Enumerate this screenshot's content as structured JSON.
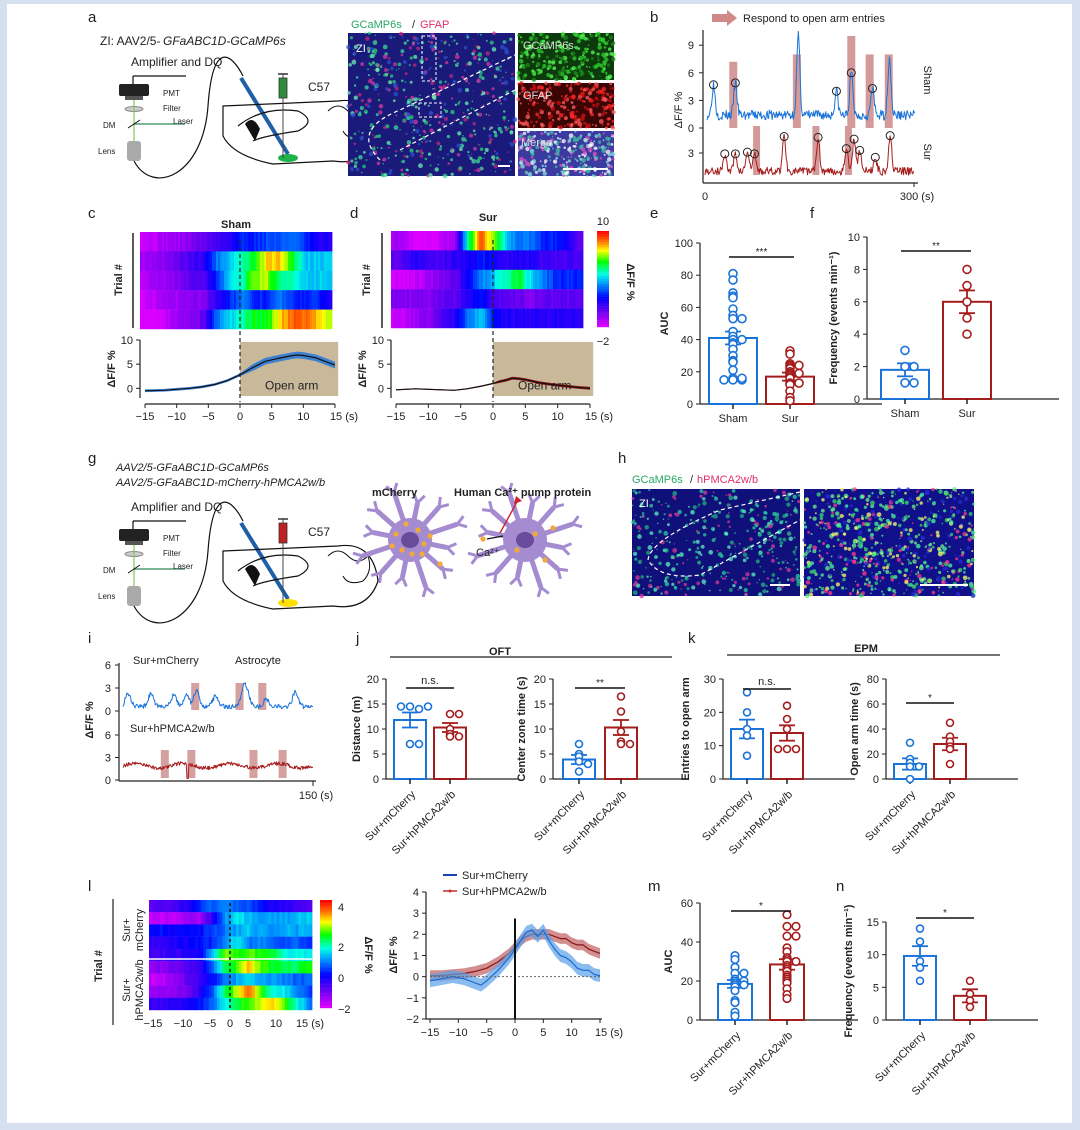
{
  "figure": {
    "colors": {
      "sham": "#1a73d9",
      "sur": "#a51c1c",
      "open_arm": "#c9b99a",
      "light_red": "#d98c8c",
      "mcherry_trace": "#1f3fb8",
      "hpmca_trace": "#c03030"
    },
    "panel_letters": [
      "a",
      "b",
      "c",
      "d",
      "e",
      "f",
      "g",
      "h",
      "i",
      "j",
      "k",
      "l",
      "m",
      "n"
    ],
    "panel_a": {
      "title": "ZI: AAV2/5-GFaABC1D-GCaMP6s",
      "amplifier": "Amplifier and DQ",
      "pmt": "PMT",
      "filter": "Filter",
      "dm": "DM",
      "laser": "Laser",
      "lens": "Lens",
      "strain": "C57",
      "zi": "ZI",
      "stain_title_green": "GCaMP6s",
      "stain_sep": " / ",
      "stain_title_red": "GFAP",
      "insets": [
        "GCaMP6s",
        "GFAP",
        "Merge"
      ]
    },
    "panel_g": {
      "line1": "AAV2/5-GFaABC1D-GCaMP6s",
      "line2": "AAV2/5-GFaABC1D-mCherry-hPMCA2w/b",
      "amplifier": "Amplifier and DQ",
      "pmt": "PMT",
      "filter": "Filter",
      "dm": "DM",
      "laser": "Laser",
      "lens": "Lens",
      "strain": "C57",
      "mcherry": "mCherry",
      "pump": "Human Ca²⁺ pump protein",
      "ca": "Ca²⁺"
    },
    "panel_h": {
      "title_green": "GCaMP6s",
      "sep": " / ",
      "title_red": "hPMCA2w/b",
      "zi": "ZI"
    }
  },
  "chart_data": [
    {
      "id": "b",
      "type": "line",
      "title": "Respond to open arm entries",
      "ylabel": "ΔF/F %",
      "xlabel": "",
      "x_ticks": [
        "0",
        "300 (s)"
      ],
      "y_ticks_sham": [
        "0",
        "3",
        "6",
        "9"
      ],
      "y_ticks_sur": [
        "3"
      ],
      "xlim": [
        0,
        300
      ],
      "series": [
        {
          "name": "Sham",
          "peaks_x": [
            12,
            43,
            132,
            186,
            207,
            237,
            261
          ],
          "peaks_y": [
            4.7,
            4.9,
            10,
            4.0,
            6.0,
            4.3,
            7.6
          ],
          "circles_x": [
            12,
            43,
            186,
            207,
            237
          ],
          "circles_y": [
            4.7,
            4.9,
            4.0,
            6.0,
            4.3
          ],
          "open_arm_x": [
            40,
            130,
            207,
            233,
            260
          ]
        },
        {
          "name": "Sur",
          "circles_x": [
            28,
            43,
            60,
            70,
            112,
            160,
            200,
            211,
            219,
            241,
            262
          ],
          "circles_y": [
            2.9,
            2.9,
            3.1,
            2.9,
            4.9,
            4.8,
            3.5,
            4.6,
            3.3,
            2.5,
            5.0
          ],
          "open_arm_x": [
            73,
            157,
            203
          ]
        }
      ]
    },
    {
      "id": "c",
      "type": "heatmap",
      "title": "Sham",
      "ylabel": "Trial #",
      "rows": [
        [
          -1.5,
          -1.5,
          -1,
          -1,
          -0.5,
          0,
          0.5,
          1,
          2,
          2,
          2.5,
          2.5,
          3,
          2,
          1,
          1
        ],
        [
          -1,
          -1,
          -0.5,
          0,
          0.5,
          1,
          3,
          4,
          5,
          6,
          8,
          8,
          6,
          4,
          4,
          4
        ],
        [
          -1.5,
          -1,
          -1,
          -0.5,
          0,
          0.5,
          2,
          4,
          5,
          7,
          7,
          5,
          5,
          4,
          4,
          4
        ],
        [
          -2,
          -1.5,
          -1,
          -1,
          -0.5,
          -0.5,
          1,
          2,
          3,
          2,
          2,
          3,
          2,
          2,
          2,
          1
        ],
        [
          -2,
          -2,
          -1.5,
          -1,
          -0.5,
          0,
          3,
          4,
          5,
          6,
          6,
          8,
          9,
          9,
          8,
          7
        ]
      ]
    },
    {
      "id": "c-trace",
      "type": "line",
      "ylabel": "ΔF/F %",
      "xlabel": "(s)",
      "xlim": [
        -15,
        15
      ],
      "ylim": [
        -2,
        10
      ],
      "x_ticks": [
        "−15",
        "−10",
        "−5",
        "0",
        "5",
        "10",
        "15 (s)"
      ],
      "y_ticks": [
        "0",
        "5",
        "10"
      ],
      "x": [
        -15,
        -12,
        -10,
        -8,
        -6,
        -4,
        -2,
        0,
        2,
        4,
        6,
        8,
        9,
        10,
        12,
        14,
        15
      ],
      "y": [
        -0.5,
        -0.4,
        -0.2,
        0,
        0.3,
        0.8,
        1.6,
        2.8,
        4.3,
        5.6,
        6.2,
        6.7,
        6.9,
        6.8,
        6.3,
        5.3,
        4.8
      ],
      "sem": 0.7,
      "annotation": "Open arm"
    },
    {
      "id": "d",
      "type": "heatmap",
      "title": "Sur",
      "ylabel": "Trial #",
      "colorbar": {
        "min": "−2",
        "max": "10",
        "label": "ΔF/F %"
      },
      "rows": [
        [
          -1,
          -1.5,
          -2,
          -2,
          -1.5,
          -1,
          5,
          9,
          7,
          4,
          3,
          3,
          2,
          2,
          1,
          0
        ],
        [
          0,
          0.5,
          1,
          0.5,
          0.5,
          1,
          1,
          2,
          1.5,
          1,
          1,
          1,
          0.5,
          0.5,
          0.5,
          0.5
        ],
        [
          -2,
          -2,
          -1.5,
          -1,
          -0.5,
          0,
          1.5,
          3,
          4,
          5,
          6,
          4,
          3,
          2,
          2,
          2
        ],
        [
          -0.5,
          -0.5,
          -0.5,
          -0.5,
          0,
          0,
          1,
          2,
          0.5,
          0,
          0,
          -0.5,
          0,
          0,
          0,
          0
        ],
        [
          -1.5,
          -1.5,
          -1,
          -0.5,
          0.5,
          1,
          3,
          4,
          2,
          1,
          1,
          1,
          1,
          1,
          1,
          1
        ]
      ]
    },
    {
      "id": "d-trace",
      "type": "line",
      "ylabel": "ΔF/F %",
      "xlabel": "(s)",
      "xlim": [
        -15,
        15
      ],
      "ylim": [
        -2,
        10
      ],
      "x_ticks": [
        "−15",
        "−10",
        "−5",
        "0",
        "5",
        "10",
        "15 (s)"
      ],
      "y_ticks": [
        "0",
        "5",
        "10"
      ],
      "x": [
        -15,
        -12,
        -10,
        -8,
        -6,
        -4,
        -2,
        0,
        1,
        2,
        3,
        4,
        5,
        7,
        9,
        11,
        13,
        15
      ],
      "y": [
        -0.3,
        -0.1,
        -0.2,
        -0.3,
        -0.4,
        -0.1,
        0.4,
        1.0,
        1.4,
        1.7,
        2.1,
        2.0,
        1.8,
        1.2,
        0.8,
        0.5,
        0.2,
        0.0
      ],
      "sem": 0.3,
      "annotation": "Open arm"
    },
    {
      "id": "e",
      "type": "bar",
      "ylabel": "AUC",
      "ylim": [
        0,
        100
      ],
      "y_ticks": [
        "0",
        "20",
        "40",
        "60",
        "80",
        "100"
      ],
      "categories": [
        "Sham",
        "Sur"
      ],
      "values": [
        41,
        17
      ],
      "sem": [
        4,
        2.5
      ],
      "significance": "***",
      "points": [
        [
          81,
          77,
          69,
          67,
          66,
          59,
          55,
          53,
          53,
          45,
          42,
          40,
          40,
          38,
          37,
          34,
          30,
          27,
          26,
          21,
          16,
          15,
          15,
          15,
          16
        ],
        [
          33,
          31,
          25,
          24,
          24,
          23,
          22,
          20,
          19,
          19,
          18,
          17,
          16,
          13,
          13,
          12,
          8,
          4,
          2
        ]
      ]
    },
    {
      "id": "f",
      "type": "bar",
      "ylabel": "Frequency (events min⁻¹)",
      "ylim": [
        0,
        10
      ],
      "y_ticks": [
        "0",
        "2",
        "4",
        "6",
        "8",
        "10"
      ],
      "categories": [
        "Sham",
        "Sur"
      ],
      "values": [
        1.8,
        6.0
      ],
      "sem": [
        0.4,
        0.7
      ],
      "significance": "**",
      "points": [
        [
          3,
          2,
          2,
          1,
          1
        ],
        [
          8,
          7,
          6,
          5,
          4
        ]
      ]
    },
    {
      "id": "i",
      "type": "line",
      "ylabel": "ΔF/F %",
      "xlim": [
        0,
        150
      ],
      "x_ticks": [
        "150 (s)"
      ],
      "y_ticks_top": [
        "0",
        "3",
        "6"
      ],
      "y_ticks_bottom": [
        "0",
        "3",
        "6"
      ],
      "series": [
        {
          "name": "Sur+mCherry",
          "label2": "Astrocyte",
          "open_arm_x": [
            57,
            92,
            110
          ]
        },
        {
          "name": "Sur+hPMCA2w/b",
          "open_arm_x": [
            33,
            54,
            103,
            126
          ]
        }
      ]
    },
    {
      "id": "j-left",
      "type": "bar",
      "group_title": "OFT",
      "ylabel": "Distance (m)",
      "ylim": [
        0,
        20
      ],
      "y_ticks": [
        "0",
        "5",
        "10",
        "15",
        "20"
      ],
      "categories": [
        "Sur+mCherry",
        "Sur+hPMCA2w/b"
      ],
      "values": [
        11.8,
        10.3
      ],
      "sem": [
        1.5,
        0.9
      ],
      "significance": "n.s.",
      "points": [
        [
          14.5,
          14,
          14.5,
          14.5,
          7,
          7
        ],
        [
          13,
          13,
          10,
          9,
          8.5,
          8.5
        ]
      ]
    },
    {
      "id": "j-right",
      "type": "bar",
      "ylabel": "Center zone time (s)",
      "ylim": [
        0,
        20
      ],
      "y_ticks": [
        "0",
        "5",
        "10",
        "15",
        "20"
      ],
      "categories": [
        "Sur+mCherry",
        "Sur+hPMCA2w/b"
      ],
      "values": [
        3.9,
        10.3
      ],
      "sem": [
        0.9,
        1.5
      ],
      "significance": "**",
      "points": [
        [
          7,
          5,
          4.5,
          3.5,
          3,
          1.5
        ],
        [
          16.5,
          13.5,
          9.5,
          7.5,
          7,
          7
        ]
      ]
    },
    {
      "id": "k-left",
      "type": "bar",
      "group_title": "EPM",
      "ylabel": "Entries to open arm",
      "ylim": [
        0,
        30
      ],
      "y_ticks": [
        "0",
        "10",
        "20",
        "30"
      ],
      "categories": [
        "Sur+mCherry",
        "Sur+hPMCA2w/b"
      ],
      "values": [
        15,
        13.8
      ],
      "sem": [
        2.8,
        2.3
      ],
      "significance": "n.s.",
      "points": [
        [
          26,
          20,
          15,
          13,
          7
        ],
        [
          22,
          18,
          15,
          9,
          9,
          9
        ]
      ]
    },
    {
      "id": "k-right",
      "type": "bar",
      "ylabel": "Open arm time (s)",
      "ylim": [
        0,
        80
      ],
      "y_ticks": [
        "0",
        "20",
        "40",
        "60",
        "80"
      ],
      "categories": [
        "Sur+mCherry",
        "Sur+hPMCA2w/b"
      ],
      "values": [
        12,
        28
      ],
      "sem": [
        4.5,
        5
      ],
      "significance": "*",
      "points": [
        [
          29,
          16,
          13,
          10,
          10,
          0
        ],
        [
          45,
          34,
          30,
          26,
          24,
          12
        ]
      ]
    },
    {
      "id": "l-heatmap",
      "type": "heatmap",
      "ylabel": "Trial #",
      "group_labels": [
        "Sur+ mCherry",
        "Sur+ hPMCA2w/b"
      ],
      "x_ticks": [
        "−15",
        "−10",
        "−5",
        "0",
        "5",
        "10",
        "15 (s)"
      ],
      "colorbar": {
        "ticks": [
          "−2",
          "0",
          "2",
          "4"
        ],
        "label": "ΔF/F %"
      },
      "rows": [
        [
          -0.8,
          -0.8,
          -0.6,
          -0.5,
          0.2,
          0.6,
          0.8,
          0.6,
          0.4,
          0,
          -0.3,
          -0.5,
          -0.7,
          -0.8
        ],
        [
          -1.8,
          -1.7,
          -1.7,
          -1.5,
          -1.5,
          -0.5,
          0.8,
          1.4,
          1.2,
          1,
          0.9,
          1,
          1.2,
          1.3
        ],
        [
          0,
          0,
          -0.2,
          0,
          0,
          0.3,
          0.7,
          1,
          1.2,
          1,
          1,
          1.1,
          1,
          1.1
        ],
        [
          -0.5,
          -0.4,
          -0.3,
          -0.2,
          0,
          0.2,
          0.8,
          1.5,
          0.7,
          0.8,
          0.5,
          0.5,
          0.5,
          0.2
        ],
        [
          -0.6,
          -0.6,
          -0.5,
          -0.4,
          -0.2,
          1,
          2.8,
          2.5,
          2.7,
          2.4,
          2.3,
          1.5,
          1.6,
          1.5
        ],
        [
          -1.4,
          -1.2,
          -1,
          -0.8,
          -0.5,
          0.5,
          2,
          2.5,
          3.5,
          2.7,
          2.3,
          2,
          2.2,
          2.6
        ],
        [
          -1.8,
          -1.7,
          -1.4,
          -0.8,
          -0.5,
          0,
          0.7,
          1,
          1.3,
          1,
          0.9,
          0.8,
          0.5,
          0.8
        ],
        [
          -1.5,
          -1.4,
          -1.2,
          -1,
          -0.5,
          0.5,
          2,
          3,
          4,
          2.5,
          1.6,
          1.4,
          0.7,
          0.3
        ],
        [
          -0.5,
          -0.5,
          -0.4,
          -0.3,
          0,
          0.5,
          1.5,
          2.2,
          2.7,
          3,
          3.5,
          2.5,
          1.5,
          0.7
        ]
      ]
    },
    {
      "id": "l-trace",
      "type": "line",
      "ylabel": "ΔF/F %",
      "xlim": [
        -15,
        15
      ],
      "ylim": [
        -2,
        4
      ],
      "x_ticks": [
        "−15",
        "−10",
        "−5",
        "0",
        "5",
        "10",
        "15 (s)"
      ],
      "y_ticks": [
        "−2",
        "−1",
        "0",
        "1",
        "2",
        "3",
        "4"
      ],
      "series": [
        {
          "name": "Sur+mCherry",
          "x": [
            -15,
            -13,
            -11,
            -9,
            -7,
            -6,
            -5,
            -3,
            -1,
            0,
            1,
            2,
            3,
            4,
            5,
            6,
            7,
            8,
            9,
            10,
            11,
            12,
            13,
            14,
            15
          ],
          "y": [
            -0.2,
            -0.1,
            0,
            -0.1,
            -0.3,
            -0.4,
            -0.2,
            0.3,
            0.9,
            1.3,
            1.7,
            2.1,
            2.2,
            1.9,
            2.2,
            1.7,
            1.3,
            1.0,
            0.9,
            0.7,
            0.4,
            0.3,
            0.3,
            0.1,
            0.05
          ],
          "sem": 0.3
        },
        {
          "name": "Sur+hPMCA2w/b",
          "x": [
            -15,
            -13,
            -11,
            -9,
            -7,
            -5,
            -3,
            -1,
            0,
            1,
            2,
            3,
            4,
            5,
            6,
            7,
            8,
            9,
            10,
            11,
            12,
            13,
            14,
            15
          ],
          "y": [
            0.05,
            0.05,
            0.1,
            0.15,
            0.25,
            0.4,
            0.7,
            1.1,
            1.4,
            1.7,
            1.9,
            2.0,
            2.0,
            2.0,
            2.0,
            1.9,
            1.8,
            1.8,
            1.6,
            1.5,
            1.5,
            1.3,
            1.2,
            1.1
          ],
          "sem": 0.25
        }
      ]
    },
    {
      "id": "m",
      "type": "bar",
      "ylabel": "AUC",
      "ylim": [
        0,
        60
      ],
      "y_ticks": [
        "0",
        "20",
        "40",
        "60"
      ],
      "categories": [
        "Sur+mCherry",
        "Sur+hPMCA2w/b"
      ],
      "values": [
        18.5,
        28.5
      ],
      "sem": [
        2,
        2.7
      ],
      "significance": "*",
      "points": [
        [
          33,
          31,
          27,
          24,
          24,
          21,
          20,
          20,
          19,
          18,
          18,
          17,
          15,
          10,
          9,
          4,
          2
        ],
        [
          54,
          48,
          48,
          43,
          43,
          37,
          35,
          32,
          31,
          30,
          30,
          28,
          27,
          26,
          25,
          23,
          22,
          21,
          20,
          19,
          16,
          13,
          11
        ]
      ]
    },
    {
      "id": "n",
      "type": "bar",
      "ylabel": "Frequency (events min⁻¹)",
      "ylim": [
        0,
        15
      ],
      "y_ticks": [
        "0",
        "5",
        "10",
        "15"
      ],
      "categories": [
        "Sur+mCherry",
        "Sur+hPMCA2w/b"
      ],
      "values": [
        9.8,
        3.7
      ],
      "sem": [
        1.5,
        1.0
      ],
      "significance": "*",
      "points": [
        [
          14,
          12,
          9,
          8,
          6
        ],
        [
          6,
          4,
          3,
          2
        ]
      ]
    }
  ]
}
